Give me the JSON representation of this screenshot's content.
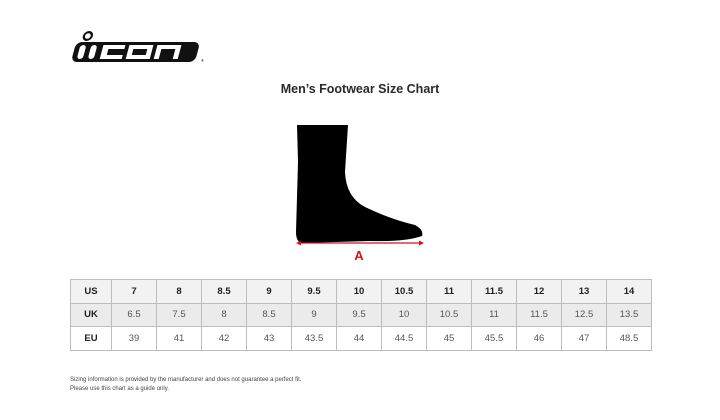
{
  "logo": {
    "text": "icon",
    "registered_mark": "®"
  },
  "title": "Men’s Footwear Size Chart",
  "diagram": {
    "measure_label": "A",
    "accent_color": "#d0141c"
  },
  "table": {
    "rows": [
      {
        "label": "US",
        "values": [
          "7",
          "8",
          "8.5",
          "9",
          "9.5",
          "10",
          "10.5",
          "11",
          "11.5",
          "12",
          "13",
          "14"
        ]
      },
      {
        "label": "UK",
        "values": [
          "6.5",
          "7.5",
          "8",
          "8.5",
          "9",
          "9.5",
          "10",
          "10.5",
          "11",
          "11.5",
          "12.5",
          "13.5"
        ]
      },
      {
        "label": "EU",
        "values": [
          "39",
          "41",
          "42",
          "43",
          "43.5",
          "44",
          "44.5",
          "45",
          "45.5",
          "46",
          "47",
          "48.5"
        ]
      }
    ]
  },
  "note": {
    "line1": "Sizing information is provided by the manufacturer and does not guarantee a perfect fit.",
    "line2": "Please use this chart as a guide only."
  }
}
